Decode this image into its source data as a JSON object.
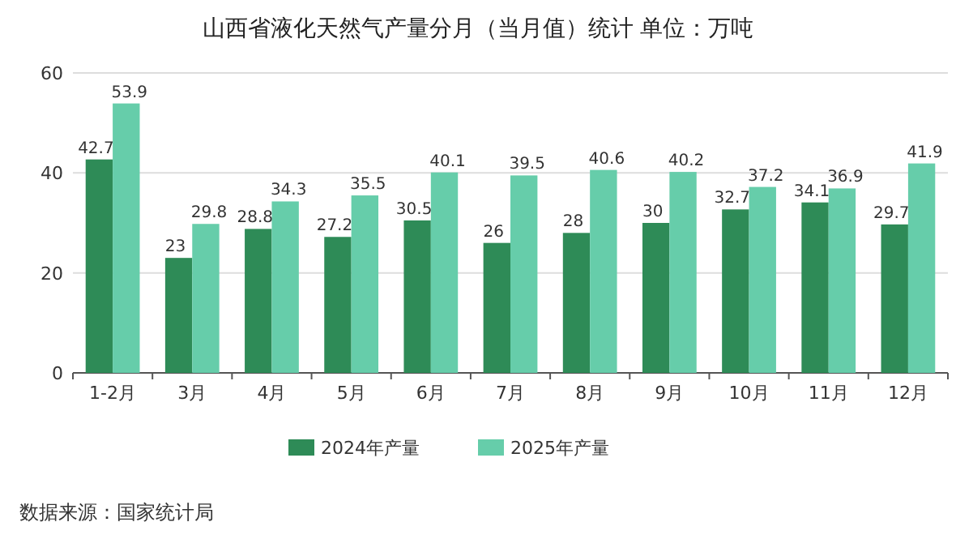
{
  "chart_data": {
    "type": "bar",
    "title": "山西省液化天然气产量分月（当月值）统计  单位：万吨",
    "categories": [
      "1-2月",
      "3月",
      "4月",
      "5月",
      "6月",
      "7月",
      "8月",
      "9月",
      "10月",
      "11月",
      "12月"
    ],
    "series": [
      {
        "name": "2024年产量",
        "color": "#2e8b57",
        "values": [
          42.7,
          23,
          28.8,
          27.2,
          30.5,
          26,
          28,
          30,
          32.7,
          34.1,
          29.7
        ]
      },
      {
        "name": "2025年产量",
        "color": "#66cdaa",
        "values": [
          53.9,
          29.8,
          34.3,
          35.5,
          40.1,
          39.5,
          40.6,
          40.2,
          37.2,
          36.9,
          41.9
        ]
      }
    ],
    "ylim": [
      0,
      60
    ],
    "yticks": [
      0,
      20,
      40,
      60
    ],
    "grid": "y",
    "legend": "bottom",
    "data_labels": true,
    "annotations": [
      "数据来源：国家统计局"
    ]
  }
}
